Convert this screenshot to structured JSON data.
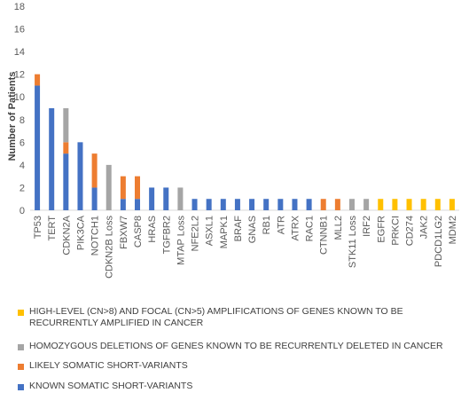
{
  "chart_data": {
    "type": "bar",
    "stacked": true,
    "ylabel": "Number of Patients",
    "ylim": [
      0,
      18
    ],
    "yticks": [
      0,
      2,
      4,
      6,
      8,
      10,
      12,
      14,
      16,
      18
    ],
    "grid": false,
    "legend_position": "bottom",
    "categories": [
      "TP53",
      "TERT",
      "CDKN2A",
      "PIK3CA",
      "NOTCH1",
      "CDKN2B Loss",
      "FBXW7",
      "CASP8",
      "HRAS",
      "TGFBR2",
      "MTAP Loss",
      "NFE2L2",
      "ASXL1",
      "MAPK1",
      "BRAF",
      "GNAS",
      "RB1",
      "ATR",
      "ATRX",
      "RAC1",
      "CTNNB1",
      "MLL2",
      "STK11 Loss",
      "IRF2",
      "EGFR",
      "PRKCI",
      "CD274",
      "JAK2",
      "PDCD1LG2",
      "MDM2"
    ],
    "series": [
      {
        "name": "KNOWN SOMATIC SHORT-VARIANTS",
        "color": "#4472c4",
        "values": [
          11,
          9,
          5,
          6,
          2,
          0,
          1,
          1,
          2,
          2,
          0,
          1,
          1,
          1,
          1,
          1,
          1,
          1,
          1,
          1,
          0,
          0,
          0,
          0,
          0,
          0,
          0,
          0,
          0,
          0
        ]
      },
      {
        "name": "LIKELY SOMATIC SHORT-VARIANTS",
        "color": "#ed7d31",
        "values": [
          1,
          0,
          1,
          0,
          3,
          0,
          2,
          2,
          0,
          0,
          0,
          0,
          0,
          0,
          0,
          0,
          0,
          0,
          0,
          0,
          1,
          1,
          0,
          0,
          0,
          0,
          0,
          0,
          0,
          0
        ]
      },
      {
        "name": "HOMOZYGOUS DELETIONS OF GENES KNOWN TO BE RECURRENTLY DELETED IN CANCER",
        "color": "#a5a5a5",
        "values": [
          0,
          0,
          3,
          0,
          0,
          4,
          0,
          0,
          0,
          0,
          2,
          0,
          0,
          0,
          0,
          0,
          0,
          0,
          0,
          0,
          0,
          0,
          1,
          1,
          0,
          0,
          0,
          0,
          0,
          0
        ]
      },
      {
        "name": "HIGH-LEVEL (CN>8) AND FOCAL (CN>5) AMPLIFICATIONS OF GENES KNOWN TO BE RECURRENTLY AMPLIFIED IN CANCER",
        "color": "#ffc000",
        "values": [
          0,
          0,
          0,
          0,
          0,
          0,
          0,
          0,
          0,
          0,
          0,
          0,
          0,
          0,
          0,
          0,
          0,
          0,
          0,
          0,
          0,
          0,
          0,
          0,
          1,
          1,
          1,
          1,
          1,
          1
        ]
      }
    ],
    "legend_order": [
      3,
      2,
      1,
      0
    ]
  }
}
